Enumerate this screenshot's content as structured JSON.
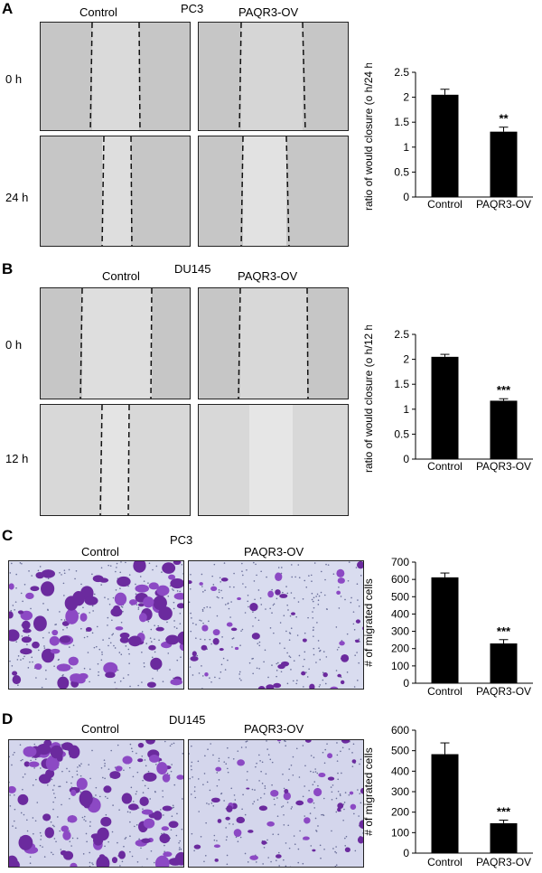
{
  "panels": [
    {
      "letter": "A",
      "cell_line": "PC3",
      "col_labels": [
        "Control",
        "PAQR3-OV"
      ],
      "row_labels": [
        "0 h",
        "24 h"
      ]
    },
    {
      "letter": "B",
      "cell_line": "DU145",
      "col_labels": [
        "Control",
        "PAQR3-OV"
      ],
      "row_labels": [
        "0 h",
        "12 h"
      ]
    },
    {
      "letter": "C",
      "cell_line": "PC3",
      "col_labels": [
        "Control",
        "PAQR3-OV"
      ]
    },
    {
      "letter": "D",
      "cell_line": "DU145",
      "col_labels": [
        "Control",
        "PAQR3-OV"
      ]
    }
  ],
  "chart_data": [
    {
      "type": "bar",
      "categories": [
        "Control",
        "PAQR3-OV"
      ],
      "values": [
        2.05,
        1.31
      ],
      "errors": [
        0.11,
        0.09
      ],
      "significance": [
        "",
        "**"
      ],
      "ylabel": "ratio of would closure (o h/24 h)",
      "ylim": [
        0,
        2.5
      ],
      "yticks": [
        "0",
        "0.5",
        "1",
        "1.5",
        "2",
        "2.5"
      ],
      "bar_color": "#000000"
    },
    {
      "type": "bar",
      "categories": [
        "Control",
        "PAQR3-OV"
      ],
      "values": [
        2.05,
        1.17
      ],
      "errors": [
        0.05,
        0.04
      ],
      "significance": [
        "",
        "***"
      ],
      "ylabel": "ratio of would closure (o h/12 h)",
      "ylim": [
        0,
        2.5
      ],
      "yticks": [
        "0",
        "0.5",
        "1",
        "1.5",
        "2",
        "2.5"
      ],
      "bar_color": "#000000"
    },
    {
      "type": "bar",
      "categories": [
        "Control",
        "PAQR3-OV"
      ],
      "values": [
        612,
        230
      ],
      "errors": [
        25,
        22
      ],
      "significance": [
        "",
        "***"
      ],
      "ylabel": "# of migrated cells",
      "ylim": [
        0,
        700
      ],
      "yticks": [
        "0",
        "100",
        "200",
        "300",
        "400",
        "500",
        "600",
        "700"
      ],
      "bar_color": "#000000"
    },
    {
      "type": "bar",
      "categories": [
        "Control",
        "PAQR3-OV"
      ],
      "values": [
        483,
        146
      ],
      "errors": [
        55,
        15
      ],
      "significance": [
        "",
        "***"
      ],
      "ylabel": "# of migrated cells",
      "ylim": [
        0,
        600
      ],
      "yticks": [
        "0",
        "100",
        "200",
        "300",
        "400",
        "500",
        "600"
      ],
      "bar_color": "#000000"
    }
  ]
}
